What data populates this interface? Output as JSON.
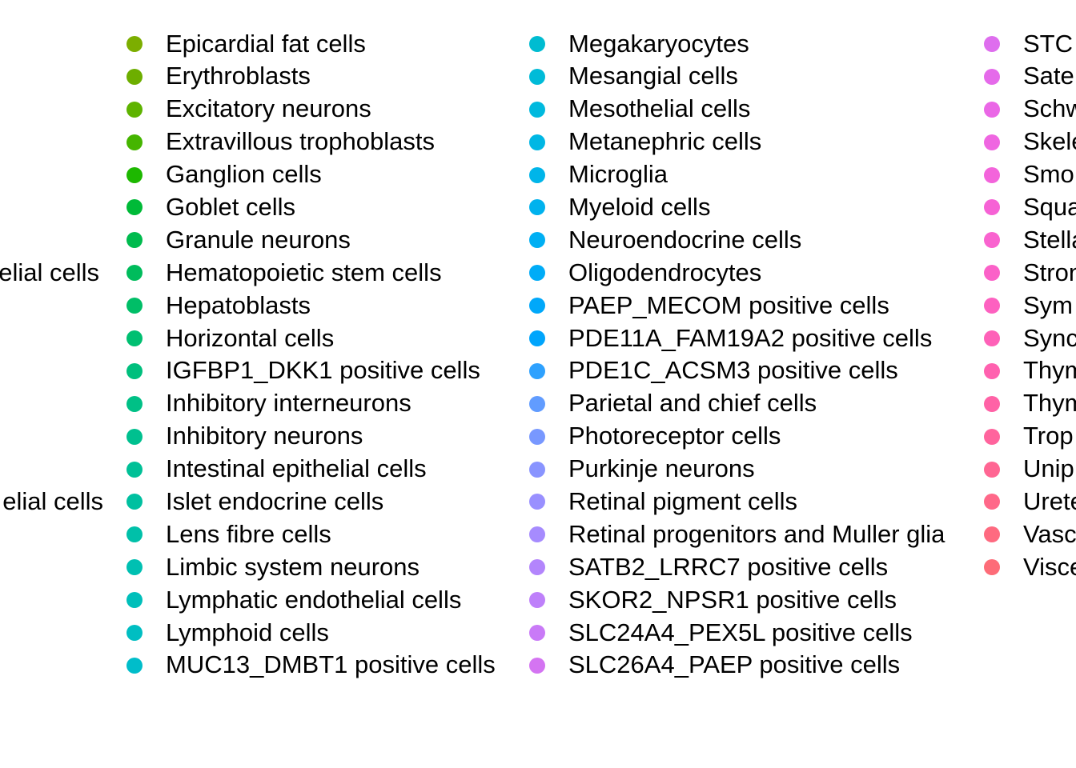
{
  "chart_data": {
    "type": "legend",
    "partial_left_labels": [
      {
        "text": "elial cells",
        "row": 7
      },
      {
        "text": "elial cells",
        "row": 14
      }
    ],
    "columns": [
      {
        "items": [
          {
            "label": "Epicardial fat cells",
            "color": "#7CAE00"
          },
          {
            "label": "Erythroblasts",
            "color": "#6DAE00"
          },
          {
            "label": "Excitatory neurons",
            "color": "#5EB300"
          },
          {
            "label": "Extravillous trophoblasts",
            "color": "#45B500"
          },
          {
            "label": "Ganglion cells",
            "color": "#1DB800"
          },
          {
            "label": "Goblet cells",
            "color": "#00BA38"
          },
          {
            "label": "Granule neurons",
            "color": "#00BB4E"
          },
          {
            "label": "Hematopoietic stem cells",
            "color": "#00BC5C"
          },
          {
            "label": "Hepatoblasts",
            "color": "#00BE67"
          },
          {
            "label": "Horizontal cells",
            "color": "#00BF71"
          },
          {
            "label": "IGFBP1_DKK1 positive cells",
            "color": "#00BF7D"
          },
          {
            "label": "Inhibitory interneurons",
            "color": "#00C086"
          },
          {
            "label": "Inhibitory neurons",
            "color": "#00C08F"
          },
          {
            "label": "Intestinal epithelial cells",
            "color": "#00C097"
          },
          {
            "label": "Islet endocrine cells",
            "color": "#00C0A0"
          },
          {
            "label": "Lens fibre cells",
            "color": "#00C0A9"
          },
          {
            "label": "Limbic system neurons",
            "color": "#00C0B2"
          },
          {
            "label": "Lymphatic endothelial cells",
            "color": "#00BFBA"
          },
          {
            "label": "Lymphoid cells",
            "color": "#00BEC2"
          },
          {
            "label": "MUC13_DMBT1 positive cells",
            "color": "#00BDCA"
          }
        ]
      },
      {
        "items": [
          {
            "label": "Megakaryocytes",
            "color": "#00BCD1"
          },
          {
            "label": "Mesangial cells",
            "color": "#00BBD8"
          },
          {
            "label": "Mesothelial cells",
            "color": "#00B9DE"
          },
          {
            "label": "Metanephric cells",
            "color": "#00B7E4"
          },
          {
            "label": "Microglia",
            "color": "#00B5E9"
          },
          {
            "label": "Myeloid cells",
            "color": "#00B2EE"
          },
          {
            "label": "Neuroendocrine cells",
            "color": "#00AFF3"
          },
          {
            "label": "Oligodendrocytes",
            "color": "#00ACF7"
          },
          {
            "label": "PAEP_MECOM positive cells",
            "color": "#00A8FA"
          },
          {
            "label": "PDE11A_FAM19A2 positive cells",
            "color": "#00A5FC"
          },
          {
            "label": "PDE1C_ACSM3 positive cells",
            "color": "#2EA1FE"
          },
          {
            "label": "Parietal and chief cells",
            "color": "#619CFF"
          },
          {
            "label": "Photoreceptor cells",
            "color": "#7898FF"
          },
          {
            "label": "Purkinje neurons",
            "color": "#8994FF"
          },
          {
            "label": "Retinal pigment cells",
            "color": "#9990FF"
          },
          {
            "label": "Retinal progenitors and Muller glia",
            "color": "#A68BFE"
          },
          {
            "label": "SATB2_LRRC7 positive cells",
            "color": "#B385FC"
          },
          {
            "label": "SKOR2_NPSR1 positive cells",
            "color": "#BE80FA"
          },
          {
            "label": "SLC24A4_PEX5L positive cells",
            "color": "#C97AF7"
          },
          {
            "label": "SLC26A4_PAEP positive cells",
            "color": "#D474F2"
          }
        ]
      },
      {
        "items": [
          {
            "label": "STC",
            "color": "#DE6EEE"
          },
          {
            "label": "Sate",
            "color": "#E56AEA"
          },
          {
            "label": "Schw",
            "color": "#EA67E6"
          },
          {
            "label": "Skele",
            "color": "#EF66E1"
          },
          {
            "label": "Smo",
            "color": "#F364DB"
          },
          {
            "label": "Squa",
            "color": "#F662D5"
          },
          {
            "label": "Stella",
            "color": "#F963CF"
          },
          {
            "label": "Stron",
            "color": "#FB61C8"
          },
          {
            "label": "Sym",
            "color": "#FD61C0"
          },
          {
            "label": "Sync",
            "color": "#FE61B8"
          },
          {
            "label": "Thym",
            "color": "#FF61AF"
          },
          {
            "label": "Thym",
            "color": "#FF62A6"
          },
          {
            "label": "Trop",
            "color": "#FF649D"
          },
          {
            "label": "Unip",
            "color": "#FF6693"
          },
          {
            "label": "Urete",
            "color": "#FF6889"
          },
          {
            "label": "Vasc",
            "color": "#FE6A80"
          },
          {
            "label": "Visce",
            "color": "#FD6C78"
          }
        ]
      }
    ]
  }
}
